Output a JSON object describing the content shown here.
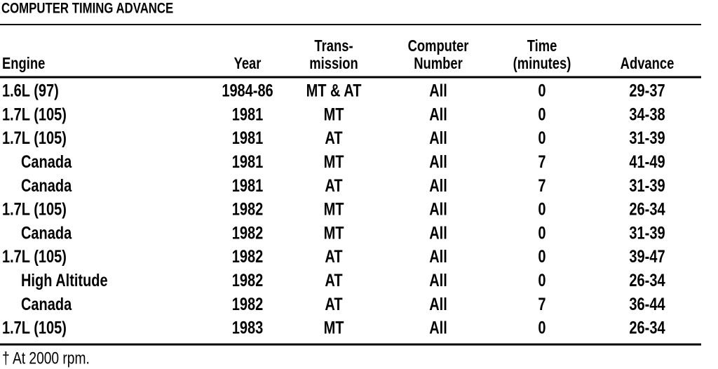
{
  "title": "COMPUTER TIMING ADVANCE",
  "table": {
    "headers": [
      [
        "Engine"
      ],
      [
        "Year"
      ],
      [
        "Trans-",
        "mission"
      ],
      [
        "Computer",
        "Number"
      ],
      [
        "Time",
        "(minutes)"
      ],
      [
        "Advance"
      ]
    ],
    "rows": [
      [
        "1.6L (97)",
        "1984-86",
        "MT & AT",
        "All",
        "0",
        "29-37"
      ],
      [
        "1.7L (105)",
        "1981",
        "MT",
        "All",
        "0",
        "34-38"
      ],
      [
        "1.7L (105)",
        "1981",
        "AT",
        "All",
        "0",
        "31-39"
      ],
      [
        "Canada",
        "1981",
        "MT",
        "All",
        "7",
        "41-49"
      ],
      [
        "Canada",
        "1981",
        "AT",
        "All",
        "7",
        "31-39"
      ],
      [
        "1.7L (105)",
        "1982",
        "MT",
        "All",
        "0",
        "26-34"
      ],
      [
        "Canada",
        "1982",
        "MT",
        "All",
        "0",
        "31-39"
      ],
      [
        "1.7L (105)",
        "1982",
        "AT",
        "All",
        "0",
        "39-47"
      ],
      [
        "High Altitude",
        "1982",
        "AT",
        "All",
        "0",
        "26-34"
      ],
      [
        "Canada",
        "1982",
        "AT",
        "All",
        "7",
        "36-44"
      ],
      [
        "1.7L (105)",
        "1983",
        "MT",
        "All",
        "0",
        "26-34"
      ]
    ]
  },
  "footnote": "† At 2000 rpm."
}
